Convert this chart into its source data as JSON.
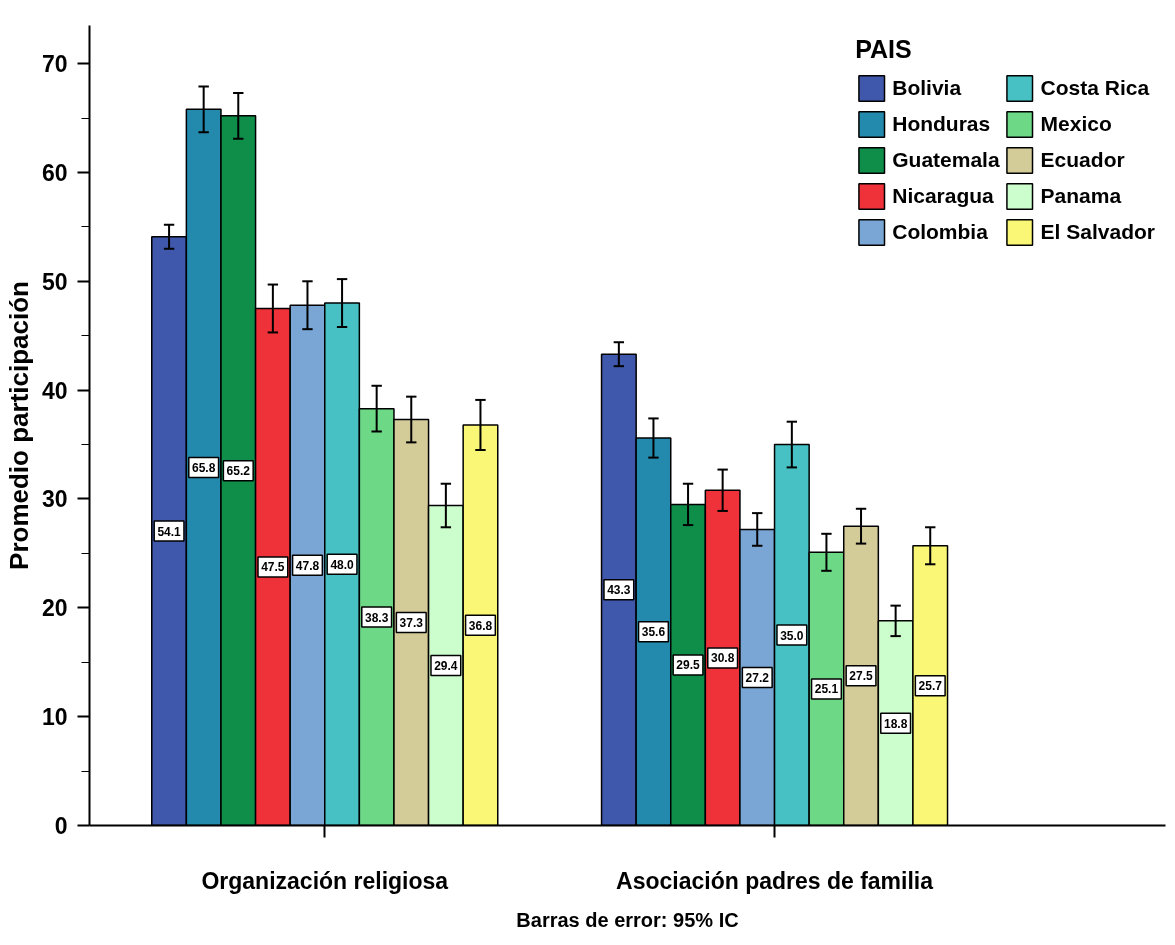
{
  "chart_data": {
    "type": "bar",
    "ylabel": "Promedio participación",
    "legend_title": "PAIS",
    "categories": [
      "Organización religiosa",
      "Asociación padres de familia"
    ],
    "series": [
      {
        "name": "Bolivia",
        "color": "#3f58ac",
        "values": [
          54.1,
          43.3
        ],
        "value_labels": [
          "54.1",
          "43.3"
        ],
        "errors": [
          1.1,
          1.1
        ]
      },
      {
        "name": "Honduras",
        "color": "#248aad",
        "values": [
          65.8,
          35.6
        ],
        "value_labels": [
          "65.8",
          "35.6"
        ],
        "errors": [
          2.1,
          1.8
        ]
      },
      {
        "name": "Guatemala",
        "color": "#0f8e4a",
        "values": [
          65.2,
          29.5
        ],
        "value_labels": [
          "65.2",
          "29.5"
        ],
        "errors": [
          2.1,
          1.9
        ]
      },
      {
        "name": "Nicaragua",
        "color": "#ef3139",
        "values": [
          47.5,
          30.8
        ],
        "value_labels": [
          "47.5",
          "30.8"
        ],
        "errors": [
          2.2,
          1.9
        ]
      },
      {
        "name": "Colombia",
        "color": "#79a6d4",
        "values": [
          47.8,
          27.2
        ],
        "value_labels": [
          "47.8",
          "27.2"
        ],
        "errors": [
          2.2,
          1.5
        ]
      },
      {
        "name": "Costa Rica",
        "color": "#47c1c4",
        "values": [
          48.0,
          35.0
        ],
        "value_labels": [
          "48.0",
          "35.0"
        ],
        "errors": [
          2.2,
          2.1
        ]
      },
      {
        "name": "Mexico",
        "color": "#6dd886",
        "values": [
          38.3,
          25.1
        ],
        "value_labels": [
          "38.3",
          "25.1"
        ],
        "errors": [
          2.1,
          1.7
        ]
      },
      {
        "name": "Ecuador",
        "color": "#d3cc98",
        "values": [
          37.3,
          27.5
        ],
        "value_labels": [
          "37.3",
          "27.5"
        ],
        "errors": [
          2.1,
          1.6
        ]
      },
      {
        "name": "Panama",
        "color": "#ccfdcc",
        "values": [
          29.4,
          18.8
        ],
        "value_labels": [
          "29.4",
          "18.8"
        ],
        "errors": [
          2.0,
          1.4
        ]
      },
      {
        "name": "El Salvador",
        "color": "#f9f775",
        "values": [
          36.8,
          25.7
        ],
        "value_labels": [
          "36.8",
          "25.7"
        ],
        "errors": [
          2.3,
          1.7
        ]
      }
    ],
    "ylim": [
      0,
      73.5
    ],
    "yticks": [
      0,
      10,
      20,
      30,
      40,
      50,
      60,
      70
    ],
    "grid": false,
    "legend": "top right",
    "annotations": [
      "Barras de error: 95% IC"
    ]
  }
}
